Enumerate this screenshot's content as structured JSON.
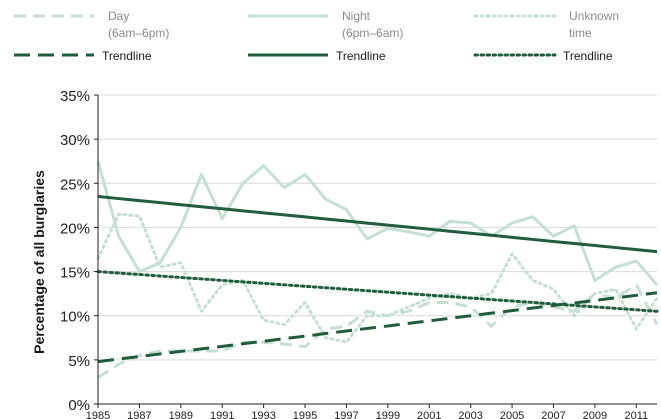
{
  "colors": {
    "raw_series": "#c4e0d2",
    "trend": "#1f5d3c",
    "axis": "#222222",
    "grid": "#d9d9d9"
  },
  "chart_data": {
    "type": "line",
    "title": "",
    "xlabel": "",
    "ylabel": "Percentage of all burglaries",
    "x": [
      1985,
      1986,
      1987,
      1988,
      1989,
      1990,
      1991,
      1992,
      1993,
      1994,
      1995,
      1996,
      1997,
      1998,
      1999,
      2000,
      2001,
      2002,
      2003,
      2004,
      2005,
      2006,
      2007,
      2008,
      2009,
      2010,
      2011,
      2012
    ],
    "x_tick_labels": [
      "1985",
      "1987",
      "1989",
      "1991",
      "1993",
      "1995",
      "1997",
      "1999",
      "2001",
      "2003",
      "2005",
      "2007",
      "2009",
      "2011"
    ],
    "x_range": [
      1985,
      2012
    ],
    "ylim": [
      0,
      35
    ],
    "y_tick_labels": [
      "0%",
      "5%",
      "10%",
      "15%",
      "20%",
      "25%",
      "30%",
      "35%"
    ],
    "grid": "horizontal",
    "legend_position": "top",
    "series": [
      {
        "name": "Day (6am–6pm)",
        "legend_lines": [
          "Day",
          "(6am–6pm)"
        ],
        "style": "dashed",
        "kind": "raw",
        "values": [
          3,
          4.5,
          5.5,
          6,
          6,
          6,
          6,
          7,
          7,
          6.8,
          6.5,
          8.5,
          8.8,
          10.5,
          10,
          10.5,
          11.5,
          11.5,
          11,
          8.8,
          11,
          11.5,
          11,
          10.5,
          12.5,
          12,
          13.5,
          9
        ]
      },
      {
        "name": "Night (6pm–6am)",
        "legend_lines": [
          "Night",
          "(6pm–6am)"
        ],
        "style": "solid",
        "kind": "raw",
        "values": [
          27.5,
          19,
          15,
          16,
          20,
          26,
          21,
          25,
          27,
          24.5,
          26,
          23.2,
          22,
          18.7,
          19.9,
          19.5,
          19,
          20.7,
          20.5,
          19,
          20.5,
          21.2,
          19,
          20.2,
          14,
          15.5,
          16.2,
          13.5
        ]
      },
      {
        "name": "Unknown time",
        "legend_lines": [
          "Unknown",
          "time"
        ],
        "style": "dotted",
        "kind": "raw",
        "values": [
          16.5,
          21.5,
          21.3,
          15.5,
          16,
          10.5,
          13.5,
          14,
          9.5,
          9,
          11.5,
          7.5,
          7,
          10,
          10,
          11,
          12,
          12.5,
          12,
          12.5,
          17,
          14,
          13,
          10,
          12.5,
          13,
          8.5,
          12
        ]
      },
      {
        "name": "Day trendline",
        "legend_lines": [
          "Trendline"
        ],
        "style": "dashed",
        "kind": "trend",
        "values": [
          4.8,
          5.09,
          5.38,
          5.67,
          5.96,
          6.24,
          6.53,
          6.82,
          7.11,
          7.4,
          7.69,
          7.98,
          8.27,
          8.56,
          8.84,
          9.13,
          9.42,
          9.71,
          10.0,
          10.29,
          10.58,
          10.87,
          11.16,
          11.44,
          11.73,
          12.02,
          12.31,
          12.6
        ]
      },
      {
        "name": "Night trendline",
        "legend_lines": [
          "Trendline"
        ],
        "style": "solid",
        "kind": "trend",
        "values": [
          23.5,
          23.27,
          23.04,
          22.81,
          22.57,
          22.34,
          22.11,
          21.88,
          21.65,
          21.42,
          21.19,
          20.96,
          20.73,
          20.49,
          20.26,
          20.03,
          19.8,
          19.57,
          19.34,
          19.11,
          18.88,
          18.64,
          18.41,
          18.18,
          17.95,
          17.72,
          17.49,
          17.26
        ]
      },
      {
        "name": "Unknown trendline",
        "legend_lines": [
          "Trendline"
        ],
        "style": "dotted",
        "kind": "trend",
        "values": [
          15.0,
          14.83,
          14.67,
          14.5,
          14.33,
          14.17,
          14.0,
          13.83,
          13.67,
          13.5,
          13.33,
          13.17,
          13.0,
          12.83,
          12.67,
          12.5,
          12.33,
          12.17,
          12.0,
          11.83,
          11.67,
          11.5,
          11.33,
          11.17,
          11.0,
          10.83,
          10.67,
          10.5
        ]
      }
    ]
  }
}
